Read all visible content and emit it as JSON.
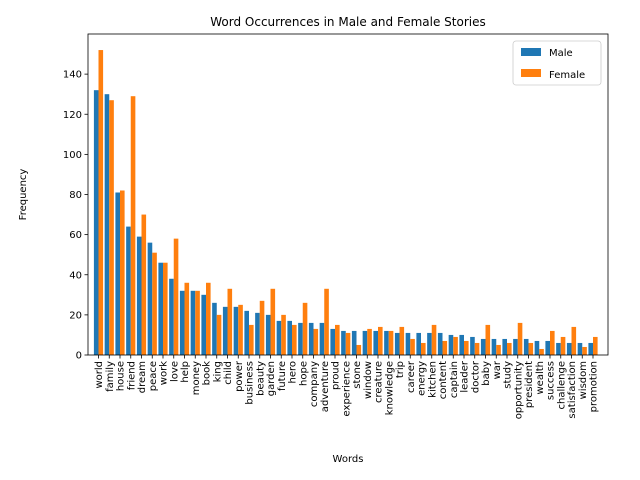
{
  "chart_data": {
    "type": "bar",
    "title": "Word Occurrences in Male and Female Stories",
    "xlabel": "Words",
    "ylabel": "Frequency",
    "ylim": [
      0,
      160
    ],
    "yticks": [
      0,
      20,
      40,
      60,
      80,
      100,
      120,
      140
    ],
    "grid": false,
    "legend_position": "top-right",
    "categories": [
      "world",
      "family",
      "house",
      "friend",
      "dream",
      "peace",
      "work",
      "love",
      "help",
      "money",
      "book",
      "king",
      "child",
      "power",
      "business",
      "beauty",
      "garden",
      "future",
      "hero",
      "hope",
      "company",
      "adventure",
      "proud",
      "experience",
      "stone",
      "window",
      "creature",
      "knowledge",
      "trip",
      "career",
      "energy",
      "kitchen",
      "content",
      "captain",
      "leader",
      "doctor",
      "baby",
      "war",
      "study",
      "opportunity",
      "president",
      "wealth",
      "success",
      "challenge",
      "satisfaction",
      "wisdom",
      "promotion"
    ],
    "series": [
      {
        "name": "Male",
        "color": "#1f77b4",
        "values": [
          132,
          130,
          81,
          64,
          59,
          56,
          46,
          38,
          32,
          32,
          30,
          26,
          24,
          24,
          22,
          21,
          20,
          17,
          17,
          16,
          16,
          16,
          13,
          12,
          12,
          12,
          12,
          12,
          11,
          11,
          11,
          11,
          11,
          10,
          10,
          9,
          8,
          8,
          8,
          8,
          8,
          7,
          7,
          6,
          6,
          6,
          6
        ]
      },
      {
        "name": "Female",
        "color": "#ff7f0e",
        "values": [
          152,
          127,
          82,
          129,
          70,
          51,
          46,
          58,
          36,
          32,
          36,
          20,
          33,
          25,
          15,
          27,
          33,
          20,
          15,
          26,
          13,
          33,
          15,
          11,
          5,
          13,
          14,
          12,
          14,
          8,
          6,
          15,
          7,
          9,
          7,
          6,
          15,
          5,
          6,
          16,
          6,
          3,
          12,
          9,
          14,
          4,
          9
        ]
      }
    ]
  }
}
